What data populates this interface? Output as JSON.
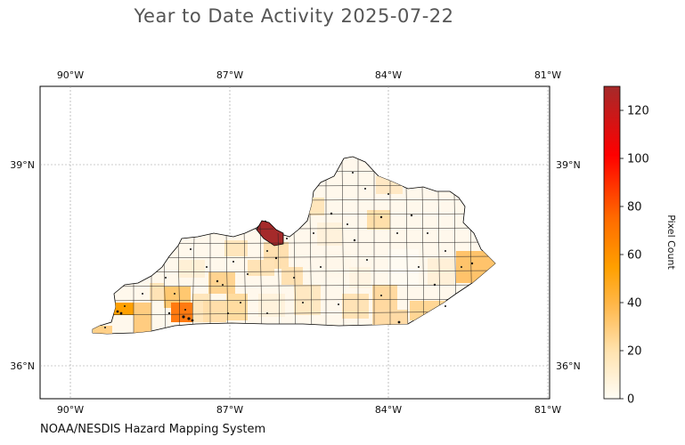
{
  "title": "Year to Date Activity 2025-07-22",
  "source": "NOAA/NESDIS Hazard Mapping System",
  "map": {
    "lon_labels": [
      "90°W",
      "87°W",
      "84°W",
      "81°W"
    ],
    "lat_labels": [
      "39°N",
      "36°N"
    ],
    "gridlines": true,
    "region": "Kentucky counties"
  },
  "colorbar": {
    "label": "Pixel Count",
    "ticks": [
      "0",
      "20",
      "40",
      "60",
      "80",
      "100",
      "120"
    ],
    "min": 0,
    "max": 130,
    "colors": [
      "#fffdf5",
      "#ffe3b0",
      "#ffb74a",
      "#ffa000",
      "#ff6a00",
      "#ff0000",
      "#a52a2a"
    ]
  },
  "highlights": [
    {
      "name": "north-central county",
      "value": 130
    },
    {
      "name": "southwest county",
      "value": 58
    },
    {
      "name": "far-west county",
      "value": 40
    },
    {
      "name": "eastern county",
      "value": 35
    }
  ]
}
